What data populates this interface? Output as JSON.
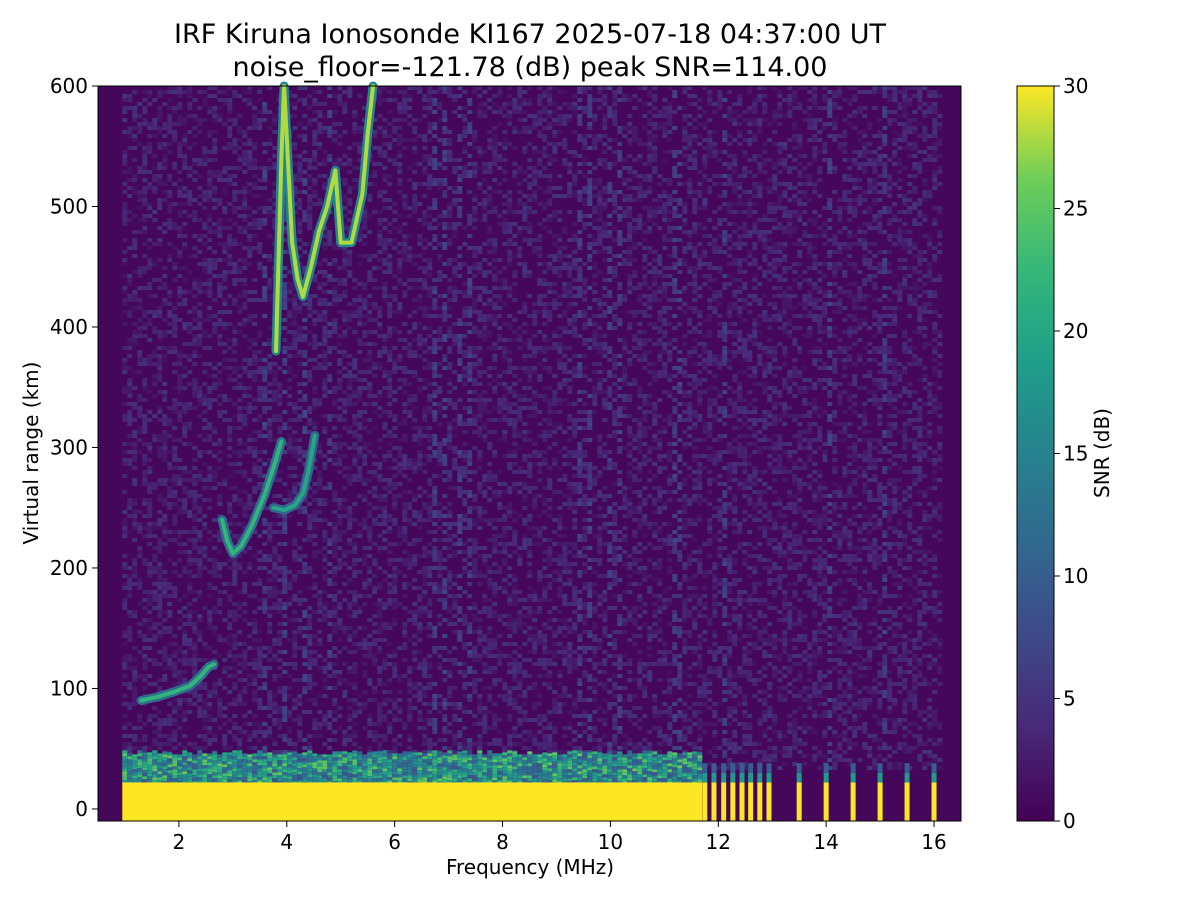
{
  "chart_data": {
    "type": "heatmap",
    "title_line1": "IRF Kiruna Ionosonde KI167 2025-07-18 04:37:00  UT",
    "title_line2": "noise_floor=-121.78 (dB) peak SNR=114.00",
    "xlabel": "Frequency (MHz)",
    "ylabel": "Virtual range (km)",
    "xlim": [
      0.5,
      16.5
    ],
    "ylim": [
      -10,
      600
    ],
    "xticks": [
      2,
      4,
      6,
      8,
      10,
      12,
      14,
      16
    ],
    "yticks": [
      0,
      100,
      200,
      300,
      400,
      500,
      600
    ],
    "colorbar": {
      "label": "SNR (dB)",
      "range": [
        0,
        30
      ],
      "ticks": [
        0,
        5,
        10,
        15,
        20,
        25,
        30
      ],
      "colormap": "viridis"
    },
    "frequency_band": [
      0.95,
      16.1
    ],
    "saturated_ground_band": {
      "range_km": [
        -10,
        22
      ],
      "freq_mhz": [
        0.95,
        11.7
      ],
      "snr_db": 30
    },
    "burst_columns_mhz": [
      11.75,
      11.92,
      12.1,
      12.27,
      12.44,
      12.6,
      12.77,
      12.94,
      13.5,
      14.0,
      14.5,
      15.0,
      15.5,
      16.0
    ],
    "traces": [
      {
        "name_hint": "E trace",
        "points": [
          [
            1.3,
            90
          ],
          [
            1.6,
            93
          ],
          [
            1.9,
            97
          ],
          [
            2.2,
            102
          ],
          [
            2.4,
            110
          ],
          [
            2.55,
            118
          ],
          [
            2.65,
            120
          ]
        ],
        "snr_db": 22
      },
      {
        "name_hint": "F1 O trace",
        "points": [
          [
            2.8,
            240
          ],
          [
            2.9,
            222
          ],
          [
            3.0,
            212
          ],
          [
            3.15,
            218
          ],
          [
            3.35,
            235
          ],
          [
            3.6,
            262
          ],
          [
            3.8,
            290
          ],
          [
            3.9,
            305
          ]
        ],
        "snr_db": 22
      },
      {
        "name_hint": "F1 X trace",
        "points": [
          [
            3.75,
            250
          ],
          [
            3.95,
            248
          ],
          [
            4.15,
            252
          ],
          [
            4.3,
            262
          ],
          [
            4.4,
            280
          ],
          [
            4.48,
            300
          ],
          [
            4.52,
            310
          ]
        ],
        "snr_db": 20
      },
      {
        "name_hint": "F2 trace",
        "points": [
          [
            3.8,
            380
          ],
          [
            3.85,
            460
          ],
          [
            3.9,
            540
          ],
          [
            3.95,
            600
          ],
          [
            4.1,
            470
          ],
          [
            4.2,
            440
          ],
          [
            4.3,
            425
          ],
          [
            4.45,
            450
          ],
          [
            4.6,
            480
          ],
          [
            4.75,
            500
          ],
          [
            4.9,
            530
          ],
          [
            5.0,
            470
          ],
          [
            5.2,
            470
          ],
          [
            5.4,
            510
          ],
          [
            5.5,
            560
          ],
          [
            5.6,
            600
          ]
        ],
        "snr_db": 28
      }
    ]
  }
}
